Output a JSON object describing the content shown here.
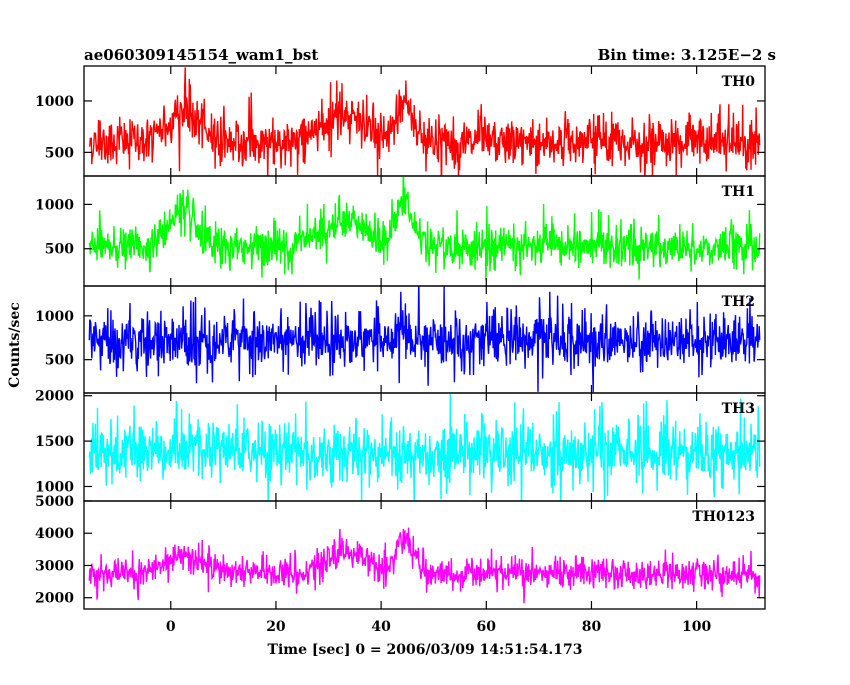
{
  "header": {
    "title_left": "ae060309145154_wam1_bst",
    "title_right": "Bin time: 3.125E−2 s"
  },
  "chart_data": {
    "type": "line",
    "xlabel": "Time [sec] 0 = 2006/03/09 14:51:54.173",
    "ylabel": "Counts/sec",
    "xlim": [
      -16.5,
      113
    ],
    "xticks": [
      0,
      20,
      40,
      60,
      80,
      100
    ],
    "xtick_labels": [
      "0",
      "20",
      "40",
      "60",
      "80",
      "100"
    ],
    "data_range": [
      -15.5,
      112
    ],
    "bin_time_s": 0.03125,
    "shared_x": true,
    "panels": [
      {
        "name": "TH0",
        "color": "#ff0000",
        "ylim": [
          270,
          1340
        ],
        "yticks": [
          500,
          1000
        ],
        "ytick_labels": [
          "500",
          "1000"
        ],
        "baseline": 600,
        "spread": 190,
        "peaks": [
          {
            "x": 2.5,
            "width": 3.0,
            "amp": 300
          },
          {
            "x": 29,
            "width": 3.0,
            "amp": 120
          },
          {
            "x": 34,
            "width": 3.0,
            "amp": 230
          },
          {
            "x": 44.5,
            "width": 1.6,
            "amp": 420
          }
        ],
        "description": "Counts/sec noise around 600 with flares near 2 s, 35 s and 45 s"
      },
      {
        "name": "TH1",
        "color": "#00ff00",
        "ylim": [
          80,
          1320
        ],
        "yticks": [
          500,
          1000
        ],
        "ytick_labels": [
          "500",
          "1000"
        ],
        "baseline": 520,
        "spread": 190,
        "peaks": [
          {
            "x": 2.0,
            "width": 2.6,
            "amp": 380
          },
          {
            "x": 29,
            "width": 3.0,
            "amp": 150
          },
          {
            "x": 34.5,
            "width": 3.0,
            "amp": 280
          },
          {
            "x": 44.5,
            "width": 1.6,
            "amp": 520
          }
        ],
        "description": "Counts/sec noise around 520 with flares near 2 s, 35 s and 45 s"
      },
      {
        "name": "TH2",
        "color": "#0000ff",
        "ylim": [
          120,
          1340
        ],
        "yticks": [
          500,
          1000
        ],
        "ytick_labels": [
          "500",
          "1000"
        ],
        "baseline": 720,
        "spread": 260,
        "peaks": [
          {
            "x": 44.5,
            "width": 1.4,
            "amp": 120
          }
        ],
        "description": "Counts/sec noise around 720, nearly flat"
      },
      {
        "name": "TH3",
        "color": "#00ffff",
        "ylim": [
          840,
          2030
        ],
        "yticks": [
          1000,
          1500,
          2000
        ],
        "ytick_labels": [
          "1000",
          "1500",
          "2000"
        ],
        "baseline": 1380,
        "spread": 280,
        "peaks": [],
        "description": "Counts/sec noise around 1380, flat"
      },
      {
        "name": "TH0123",
        "color": "#ff00ff",
        "ylim": [
          1650,
          5000
        ],
        "yticks": [
          2000,
          3000,
          4000,
          5000
        ],
        "ytick_labels": [
          "2000",
          "3000",
          "4000",
          "5000"
        ],
        "baseline": 2750,
        "spread": 380,
        "peaks": [
          {
            "x": 2.5,
            "width": 3.0,
            "amp": 600
          },
          {
            "x": 30,
            "width": 3.0,
            "amp": 300
          },
          {
            "x": 35,
            "width": 3.0,
            "amp": 550
          },
          {
            "x": 44.5,
            "width": 1.6,
            "amp": 1100
          }
        ],
        "description": "Summed counts/sec noise around 2750 with flares near 2 s, 35 s and 45 s"
      }
    ]
  }
}
